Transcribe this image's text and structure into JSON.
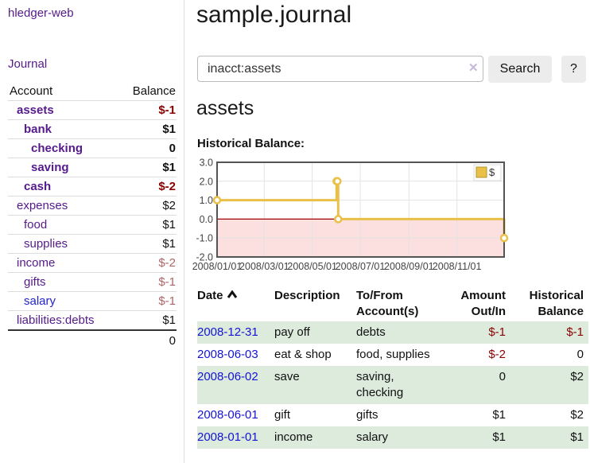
{
  "nav": {
    "brand": "hledger-web",
    "journal": "Journal"
  },
  "sidebar": {
    "columns": [
      "Account",
      "Balance"
    ],
    "accounts": [
      {
        "name": "assets",
        "level": 1,
        "bold": true,
        "balance": "$-1",
        "balance_class": "neg-strong"
      },
      {
        "name": "bank",
        "level": 2,
        "bold": true,
        "balance": "$1",
        "balance_class": "strong"
      },
      {
        "name": "checking",
        "level": 3,
        "bold": true,
        "balance": "0",
        "balance_class": "strong"
      },
      {
        "name": "saving",
        "level": 3,
        "bold": true,
        "balance": "$1",
        "balance_class": "strong"
      },
      {
        "name": "cash",
        "level": 2,
        "bold": true,
        "balance": "$-2",
        "balance_class": "neg-strong"
      },
      {
        "name": "expenses",
        "level": 1,
        "bold": false,
        "balance": "$2",
        "balance_class": "plain"
      },
      {
        "name": "food",
        "level": 2,
        "bold": false,
        "balance": "$1",
        "balance_class": "plain"
      },
      {
        "name": "supplies",
        "level": 2,
        "bold": false,
        "balance": "$1",
        "balance_class": "plain"
      },
      {
        "name": "income",
        "level": 1,
        "bold": false,
        "balance": "$-2",
        "balance_class": "neg-soft"
      },
      {
        "name": "gifts",
        "level": 2,
        "bold": false,
        "balance": "$-1",
        "balance_class": "neg-soft"
      },
      {
        "name": "salary",
        "level": 2,
        "bold": false,
        "blue": true,
        "balance": "$-1",
        "balance_class": "neg-soft"
      },
      {
        "name": "liabilities:debts",
        "level": 1,
        "bold": false,
        "balance": "$1",
        "balance_class": "plain"
      }
    ],
    "total": "0"
  },
  "header": {
    "title": "sample.journal"
  },
  "search": {
    "value": "inacct:assets",
    "clear_icon": "✕",
    "button_label": "Search",
    "help_label": "?"
  },
  "account_page": {
    "title": "assets",
    "chart_heading": "Historical Balance:"
  },
  "chart_data": {
    "type": "line",
    "step": true,
    "title": "Historical Balance",
    "legend": [
      {
        "label": "$",
        "color": "#e9c048"
      }
    ],
    "legend_position": "top-right",
    "grid": true,
    "ylim": [
      -2,
      3
    ],
    "yticks": [
      {
        "v": 3,
        "label": "3.0"
      },
      {
        "v": 2,
        "label": "2.0"
      },
      {
        "v": 1,
        "label": "1.0"
      },
      {
        "v": 0,
        "label": "0.0"
      },
      {
        "v": -1,
        "label": "-1.0"
      },
      {
        "v": -2,
        "label": "-2.0"
      }
    ],
    "xticks": [
      {
        "date": "2008-01-01",
        "label": "2008/01/01"
      },
      {
        "date": "2008-03-01",
        "label": "2008/03/01"
      },
      {
        "date": "2008-05-01",
        "label": "2008/05/01"
      },
      {
        "date": "2008-07-01",
        "label": "2008/07/01"
      },
      {
        "date": "2008-09-01",
        "label": "2008/09/01"
      },
      {
        "date": "2008-11-01",
        "label": "2008/11/01"
      }
    ],
    "series": [
      {
        "name": "$",
        "color": "#e9c048",
        "points": [
          [
            "2008-01-01",
            1
          ],
          [
            "2008-06-01",
            2
          ],
          [
            "2008-06-02",
            2
          ],
          [
            "2008-06-03",
            0
          ],
          [
            "2008-12-31",
            -1
          ]
        ]
      }
    ],
    "negative_region": {
      "below": 0,
      "fill": "#fcdfdf",
      "line_color": "#a00000"
    }
  },
  "register": {
    "columns": [
      {
        "lines": [
          "Date"
        ],
        "sorted": "asc",
        "align": "left"
      },
      {
        "lines": [
          "Description"
        ],
        "align": "left"
      },
      {
        "lines": [
          "To/From",
          "Account(s)"
        ],
        "align": "left"
      },
      {
        "lines": [
          "Amount",
          "Out/In"
        ],
        "align": "right"
      },
      {
        "lines": [
          "Historical",
          "Balance"
        ],
        "align": "right"
      }
    ],
    "rows": [
      {
        "date": "2008-12-31",
        "description": "pay off",
        "accounts": "debts",
        "amount": "$-1",
        "amount_neg": true,
        "balance": "$-1",
        "balance_neg": true
      },
      {
        "date": "2008-06-03",
        "description": "eat & shop",
        "accounts": "food, supplies",
        "amount": "$-2",
        "amount_neg": true,
        "balance": "0",
        "balance_neg": false
      },
      {
        "date": "2008-06-02",
        "description": "save",
        "accounts": "saving, checking",
        "amount": "0",
        "amount_neg": false,
        "balance": "$2",
        "balance_neg": false
      },
      {
        "date": "2008-06-01",
        "description": "gift",
        "accounts": "gifts",
        "amount": "$1",
        "amount_neg": false,
        "balance": "$2",
        "balance_neg": false
      },
      {
        "date": "2008-01-01",
        "description": "income",
        "accounts": "salary",
        "amount": "$1",
        "amount_neg": false,
        "balance": "$1",
        "balance_neg": false
      }
    ]
  }
}
